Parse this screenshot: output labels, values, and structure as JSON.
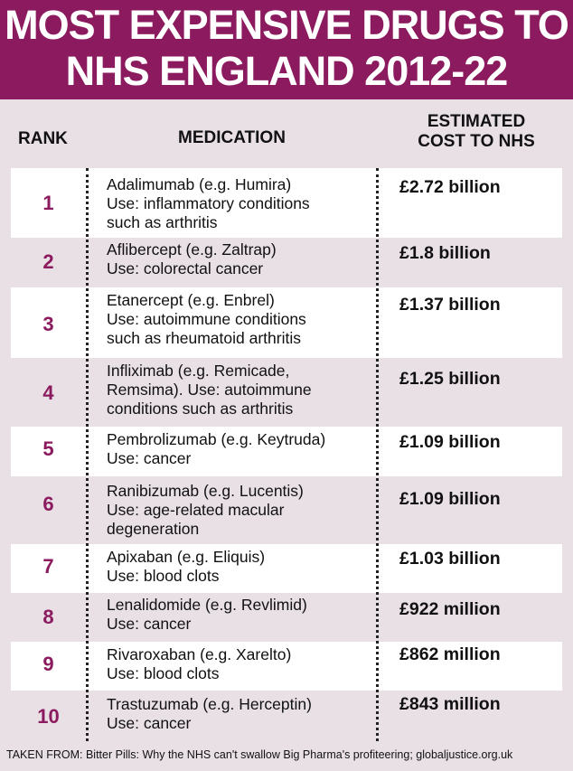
{
  "title": {
    "line1": "MOST EXPENSIVE DRUGS TO",
    "line2": "NHS ENGLAND 2012-22"
  },
  "headers": {
    "rank": "RANK",
    "medication": "MEDICATION",
    "cost_line1": "ESTIMATED",
    "cost_line2": "COST TO NHS"
  },
  "rows": [
    {
      "rank": "1",
      "med": [
        "Adalimumab (e.g. Humira)",
        "Use: inflammatory conditions",
        "such as arthritis"
      ],
      "cost": "£2.72 billion"
    },
    {
      "rank": "2",
      "med": [
        "Aflibercept (e.g. Zaltrap)",
        "Use: colorectal cancer"
      ],
      "cost": "£1.8 billion"
    },
    {
      "rank": "3",
      "med": [
        "Etanercept (e.g. Enbrel)",
        "Use: autoimmune conditions",
        "such as rheumatoid arthritis"
      ],
      "cost": "£1.37 billion"
    },
    {
      "rank": "4",
      "med": [
        "Infliximab (e.g. Remicade,",
        "Remsima). Use: autoimmune",
        "conditions such as arthritis"
      ],
      "cost": "£1.25 billion"
    },
    {
      "rank": "5",
      "med": [
        "Pembrolizumab (e.g. Keytruda)",
        "Use: cancer"
      ],
      "cost": "£1.09 billion"
    },
    {
      "rank": "6",
      "med": [
        "Ranibizumab (e.g. Lucentis)",
        "Use: age-related macular",
        "degeneration"
      ],
      "cost": "£1.09 billion"
    },
    {
      "rank": "7",
      "med": [
        "Apixaban (e.g. Eliquis)",
        "Use: blood clots"
      ],
      "cost": "£1.03 billion"
    },
    {
      "rank": "8",
      "med": [
        "Lenalidomide (e.g. Revlimid)",
        "Use: cancer"
      ],
      "cost": "£922 million"
    },
    {
      "rank": "9",
      "med": [
        "Rivaroxaban (e.g. Xarelto)",
        "Use: blood clots"
      ],
      "cost": "£862 million"
    },
    {
      "rank": "10",
      "med": [
        "Trastuzumab (e.g. Herceptin)",
        "Use: cancer"
      ],
      "cost": "£843 million"
    }
  ],
  "footer": "TAKEN FROM: Bitter Pills: Why the NHS can't swallow Big Pharma's profiteering; globaljustice.org.uk",
  "colors": {
    "banner": "#8b1a5e",
    "rank_text": "#8b1a5e",
    "background": "#e9e0e6",
    "alt_row": "#ffffff"
  }
}
